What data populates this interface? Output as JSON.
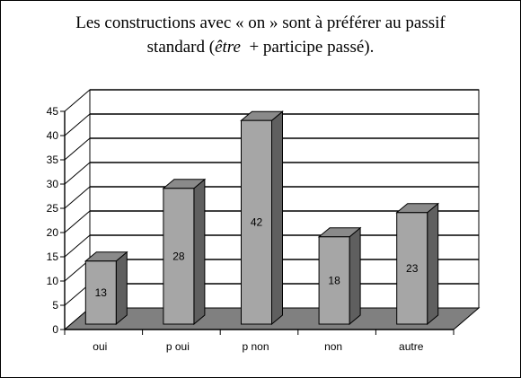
{
  "chart_data": {
    "type": "bar",
    "title_line1": "Les constructions avec « on » sont à préférer au passif",
    "title_line2_pre": "standard (",
    "title_line2_italic": "être",
    "title_line2_post": "  + participe passé).",
    "categories": [
      "oui",
      "p oui",
      "p non",
      "non",
      "autre"
    ],
    "values": [
      13,
      28,
      42,
      18,
      23
    ],
    "data_labels": [
      "13",
      "28",
      "42",
      "18",
      "23"
    ],
    "ylim": [
      0,
      45
    ],
    "yticks": [
      0,
      5,
      10,
      15,
      20,
      25,
      30,
      35,
      40,
      45
    ],
    "ytick_labels": [
      "0",
      "5",
      "10",
      "15",
      "20",
      "25",
      "30",
      "35",
      "40",
      "45"
    ],
    "grid": true,
    "legend": "none",
    "style": "3d-bar",
    "colors": {
      "bar_front": "#a6a6a6",
      "bar_side": "#5f5f5f",
      "bar_top": "#8a8a8a",
      "floor": "#808080",
      "gridline": "#000000"
    }
  }
}
